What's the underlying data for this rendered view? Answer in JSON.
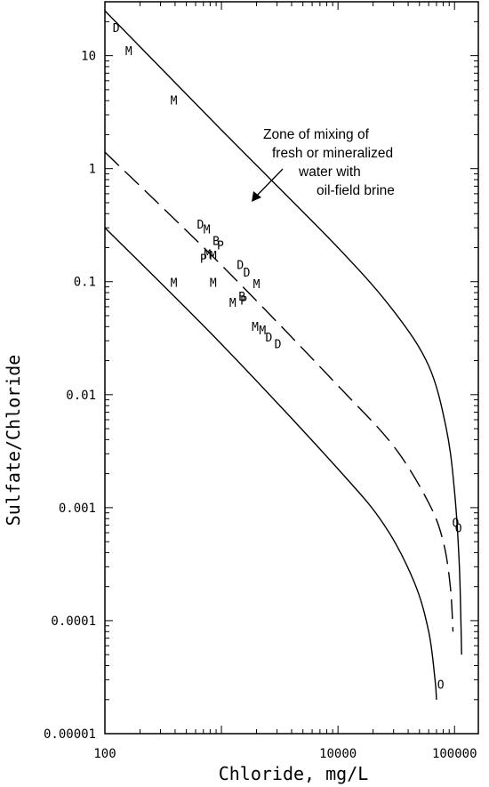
{
  "chart_data": {
    "type": "scatter",
    "title": "",
    "xlabel": "Chloride, mg/L",
    "ylabel": "Sulfate/Chloride",
    "xscale": "log",
    "yscale": "log",
    "xlim": [
      100,
      160000
    ],
    "ylim": [
      1e-05,
      30
    ],
    "x_ticks": [
      {
        "value": 100,
        "label": "100"
      },
      {
        "value": 1000,
        "label": ""
      },
      {
        "value": 10000,
        "label": "10000"
      },
      {
        "value": 100000,
        "label": "100000"
      }
    ],
    "y_ticks": [
      {
        "value": 1e-05,
        "label": "0.00001"
      },
      {
        "value": 0.0001,
        "label": "0.0001"
      },
      {
        "value": 0.001,
        "label": "0.001"
      },
      {
        "value": 0.01,
        "label": "0.01"
      },
      {
        "value": 0.1,
        "label": "0.1"
      },
      {
        "value": 1,
        "label": "1"
      },
      {
        "value": 10,
        "label": "10"
      }
    ],
    "grid": false,
    "curves": [
      {
        "style": "solid",
        "points": [
          [
            100,
            25
          ],
          [
            1000,
            2.2
          ],
          [
            10000,
            0.2
          ],
          [
            30000,
            0.055
          ],
          [
            60000,
            0.018
          ],
          [
            85000,
            0.005
          ],
          [
            100000,
            0.0014
          ],
          [
            110000,
            0.0003
          ],
          [
            115000,
            5e-05
          ]
        ]
      },
      {
        "style": "dashed",
        "points": [
          [
            100,
            1.4
          ],
          [
            1000,
            0.14
          ],
          [
            10000,
            0.012
          ],
          [
            30000,
            0.0035
          ],
          [
            60000,
            0.0011
          ],
          [
            80000,
            0.0005
          ],
          [
            92000,
            0.0002
          ],
          [
            97000,
            8e-05
          ]
        ]
      },
      {
        "style": "solid",
        "points": [
          [
            100,
            0.3
          ],
          [
            1000,
            0.028
          ],
          [
            10000,
            0.0022
          ],
          [
            25000,
            0.0007
          ],
          [
            45000,
            0.00022
          ],
          [
            60000,
            8e-05
          ],
          [
            68000,
            3e-05
          ],
          [
            70000,
            2e-05
          ]
        ]
      }
    ],
    "points": [
      {
        "x": 125,
        "y": 17.5,
        "label": "D"
      },
      {
        "x": 160,
        "y": 11,
        "label": "M"
      },
      {
        "x": 390,
        "y": 4,
        "label": "M"
      },
      {
        "x": 660,
        "y": 0.32,
        "label": "D"
      },
      {
        "x": 750,
        "y": 0.29,
        "label": "M"
      },
      {
        "x": 900,
        "y": 0.23,
        "label": "B"
      },
      {
        "x": 980,
        "y": 0.21,
        "label": "P"
      },
      {
        "x": 700,
        "y": 0.16,
        "label": "P"
      },
      {
        "x": 760,
        "y": 0.175,
        "label": "M"
      },
      {
        "x": 850,
        "y": 0.17,
        "label": "M"
      },
      {
        "x": 1450,
        "y": 0.14,
        "label": "D"
      },
      {
        "x": 1650,
        "y": 0.12,
        "label": "D"
      },
      {
        "x": 390,
        "y": 0.098,
        "label": "M"
      },
      {
        "x": 850,
        "y": 0.098,
        "label": "M"
      },
      {
        "x": 2000,
        "y": 0.095,
        "label": "M"
      },
      {
        "x": 1500,
        "y": 0.074,
        "label": "B"
      },
      {
        "x": 1550,
        "y": 0.068,
        "label": "P"
      },
      {
        "x": 1250,
        "y": 0.065,
        "label": "M"
      },
      {
        "x": 1950,
        "y": 0.04,
        "label": "M"
      },
      {
        "x": 2250,
        "y": 0.037,
        "label": "M"
      },
      {
        "x": 2550,
        "y": 0.032,
        "label": "D"
      },
      {
        "x": 3050,
        "y": 0.028,
        "label": "D"
      },
      {
        "x": 102000,
        "y": 0.00073,
        "label": "O"
      },
      {
        "x": 108000,
        "y": 0.00066,
        "label": "O"
      },
      {
        "x": 76000,
        "y": 2.7e-05,
        "label": "O"
      }
    ],
    "annotation": {
      "lines": [
        "Zone of mixing of",
        "fresh or mineralized",
        "water with",
        "oil-field brine"
      ]
    }
  }
}
